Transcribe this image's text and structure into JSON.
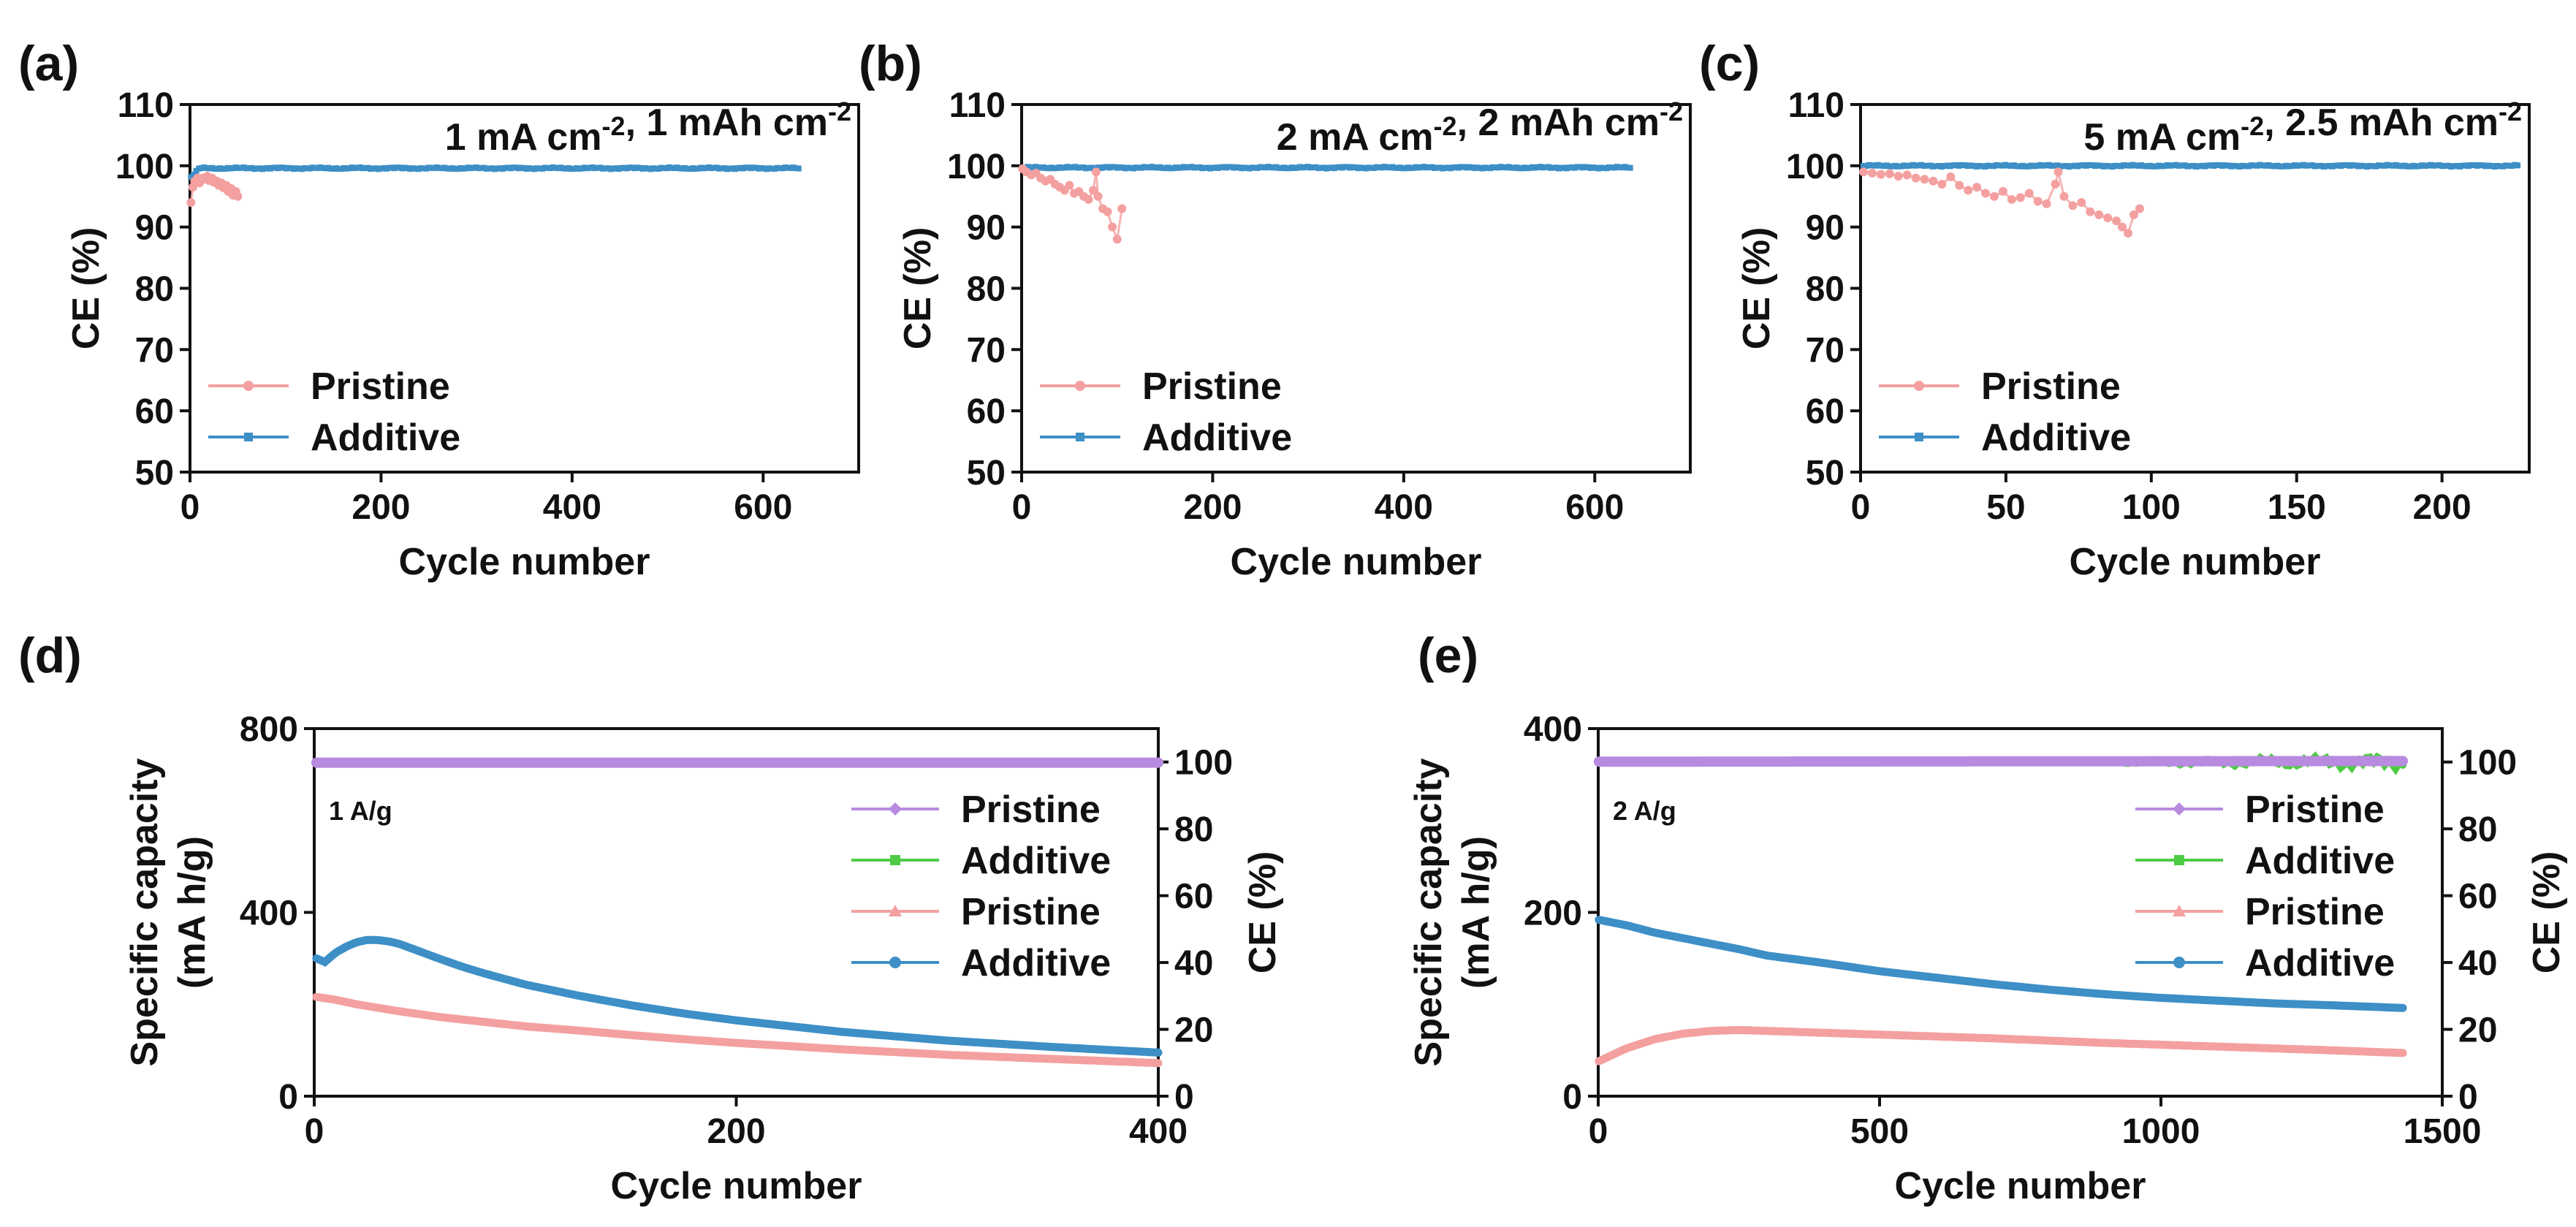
{
  "colors": {
    "pristine_ce": "#f4a0a0",
    "additive_ce": "#3d8fc6",
    "pristine_cap": "#f4a0a0",
    "additive_cap": "#3d8fc6",
    "pristine_ce_de": "#b88ae0",
    "additive_ce_de": "#4ecb45"
  },
  "chart_data": [
    {
      "panel": "(a)",
      "type": "scatter",
      "annotation": "1 mA cm-2, 1 mAh cm-2",
      "xlabel": "Cycle number",
      "ylabel": "CE (%)",
      "xlim": [
        0,
        700
      ],
      "ylim": [
        50,
        110
      ],
      "xticks": [
        0,
        200,
        400,
        600
      ],
      "yticks": [
        50,
        60,
        70,
        80,
        90,
        100,
        110
      ],
      "legend_position": "bottom-left",
      "series": [
        {
          "name": "Pristine",
          "color": "#f4a0a0",
          "x": [
            1,
            3,
            5,
            8,
            10,
            13,
            15,
            18,
            20,
            23,
            25,
            28,
            30,
            33,
            35,
            38,
            40,
            43,
            45,
            48,
            50
          ],
          "y": [
            94,
            96.5,
            97.5,
            98,
            97.2,
            98,
            97.8,
            98.3,
            97.6,
            98,
            97.3,
            97.5,
            96.8,
            97.2,
            96.4,
            96.8,
            95.8,
            96.3,
            95.2,
            95.8,
            95
          ]
        },
        {
          "name": "Additive",
          "color": "#3d8fc6",
          "x_range": [
            1,
            637
          ],
          "y_start": 98,
          "y_plateau": 99.6
        }
      ]
    },
    {
      "panel": "(b)",
      "type": "scatter",
      "annotation": "2 mA cm-2, 2 mAh cm-2",
      "xlabel": "Cycle number",
      "ylabel": "CE (%)",
      "xlim": [
        0,
        700
      ],
      "ylim": [
        50,
        110
      ],
      "xticks": [
        0,
        200,
        400,
        600
      ],
      "yticks": [
        50,
        60,
        70,
        80,
        90,
        100,
        110
      ],
      "legend_position": "bottom-left",
      "series": [
        {
          "name": "Pristine",
          "color": "#f4a0a0",
          "x": [
            1,
            5,
            10,
            15,
            20,
            25,
            30,
            35,
            40,
            45,
            50,
            55,
            60,
            65,
            70,
            75,
            78,
            80,
            85,
            90,
            95,
            100,
            105
          ],
          "y": [
            99.5,
            99,
            98.5,
            98.8,
            98,
            97.5,
            97.8,
            97,
            96.5,
            96,
            96.8,
            95.5,
            95.8,
            95,
            94.5,
            96,
            99,
            95,
            93,
            92.5,
            90,
            88,
            93
          ]
        },
        {
          "name": "Additive",
          "color": "#3d8fc6",
          "x_range": [
            1,
            637
          ],
          "y_start": 99.7,
          "y_plateau": 99.7
        }
      ]
    },
    {
      "panel": "(c)",
      "type": "scatter",
      "annotation": "5 mA cm-2, 2.5 mAh cm-2",
      "xlabel": "Cycle number",
      "ylabel": "CE (%)",
      "xlim": [
        0,
        230
      ],
      "ylim": [
        50,
        110
      ],
      "xticks": [
        0,
        50,
        100,
        150,
        200
      ],
      "yticks": [
        50,
        60,
        70,
        80,
        90,
        100,
        110
      ],
      "legend_position": "bottom-left",
      "series": [
        {
          "name": "Pristine",
          "color": "#f4a0a0",
          "x": [
            1,
            4,
            7,
            10,
            13,
            16,
            19,
            22,
            25,
            28,
            31,
            34,
            37,
            40,
            43,
            46,
            49,
            52,
            55,
            58,
            61,
            64,
            67,
            68,
            70,
            73,
            76,
            79,
            82,
            85,
            88,
            90,
            92,
            94,
            96
          ],
          "y": [
            99,
            98.8,
            98.6,
            98.7,
            98.3,
            98.5,
            98,
            97.8,
            97.5,
            97,
            98.2,
            96.8,
            96,
            96.5,
            95.5,
            95,
            95.8,
            94.5,
            94.8,
            95.5,
            94.2,
            93.8,
            97,
            99,
            95,
            93.5,
            94,
            92.5,
            92,
            91.5,
            91,
            90,
            89,
            92,
            93
          ]
        },
        {
          "name": "Additive",
          "color": "#3d8fc6",
          "x_range": [
            1,
            226
          ],
          "y_start": 100,
          "y_plateau": 100
        }
      ]
    },
    {
      "panel": "(d)",
      "type": "line",
      "rate_label": "1 A/g",
      "xlabel": "Cycle number",
      "ylabel": "Specific capacity",
      "ylabel_unit": "(mA h/g)",
      "y2label": "CE (%)",
      "xlim": [
        0,
        400
      ],
      "ylim": [
        0,
        800
      ],
      "y2lim": [
        0,
        110
      ],
      "xticks": [
        0,
        200,
        400
      ],
      "yticks": [
        0,
        400,
        800
      ],
      "y2ticks": [
        0,
        20,
        40,
        60,
        80,
        100
      ],
      "legend_position": "right",
      "series": [
        {
          "name": "Pristine",
          "axis": "right",
          "color": "#b88ae0",
          "x": [
            1,
            400
          ],
          "y": [
            99.8,
            99.8
          ]
        },
        {
          "name": "Additive",
          "axis": "right",
          "color": "#4ecb45",
          "x": [
            1,
            400
          ],
          "y": [
            99.9,
            99.9
          ]
        },
        {
          "name": "Pristine",
          "axis": "left",
          "color": "#f4a0a0",
          "x": [
            1,
            10,
            20,
            40,
            60,
            80,
            100,
            125,
            150,
            175,
            200,
            250,
            300,
            350,
            400
          ],
          "y": [
            216,
            210,
            200,
            185,
            172,
            162,
            152,
            143,
            133,
            124,
            116,
            102,
            90,
            81,
            72
          ]
        },
        {
          "name": "Additive",
          "axis": "left",
          "color": "#3d8fc6",
          "x": [
            1,
            5,
            10,
            15,
            20,
            25,
            30,
            35,
            40,
            50,
            60,
            70,
            80,
            100,
            125,
            150,
            175,
            200,
            250,
            300,
            350,
            400
          ],
          "y": [
            300,
            292,
            312,
            325,
            335,
            340,
            340,
            337,
            332,
            315,
            298,
            282,
            268,
            243,
            219,
            198,
            180,
            165,
            140,
            121,
            107,
            95
          ]
        }
      ]
    },
    {
      "panel": "(e)",
      "type": "line",
      "rate_label": "2 A/g",
      "xlabel": "Cycle number",
      "ylabel": "Specific capacity",
      "ylabel_unit": "(mA h/g)",
      "y2label": "CE (%)",
      "xlim": [
        0,
        1500
      ],
      "ylim": [
        0,
        400
      ],
      "y2lim": [
        0,
        110
      ],
      "xticks": [
        0,
        500,
        1000,
        1500
      ],
      "yticks": [
        0,
        200,
        400
      ],
      "y2ticks": [
        0,
        20,
        40,
        60,
        80,
        100
      ],
      "legend_position": "right",
      "series": [
        {
          "name": "Pristine",
          "axis": "right",
          "color": "#b88ae0",
          "x": [
            1,
            1430
          ],
          "y": [
            100.1,
            100.3
          ]
        },
        {
          "name": "Additive",
          "axis": "right",
          "color": "#4ecb45",
          "x": [
            1,
            1430
          ],
          "y": [
            100,
            100
          ]
        },
        {
          "name": "Pristine",
          "axis": "left",
          "color": "#f4a0a0",
          "x": [
            1,
            50,
            100,
            150,
            200,
            250,
            300,
            400,
            500,
            700,
            900,
            1100,
            1300,
            1430
          ],
          "y": [
            38,
            52,
            62,
            68,
            71,
            72,
            71,
            69,
            67,
            63,
            58,
            54,
            50,
            47
          ]
        },
        {
          "name": "Additive",
          "axis": "left",
          "color": "#3d8fc6",
          "x": [
            1,
            50,
            100,
            150,
            200,
            250,
            300,
            400,
            500,
            600,
            700,
            800,
            900,
            1000,
            1100,
            1200,
            1300,
            1430
          ],
          "y": [
            192,
            186,
            178,
            172,
            166,
            160,
            153,
            145,
            136,
            129,
            122,
            116,
            111,
            107,
            104,
            101,
            99,
            96
          ]
        }
      ]
    }
  ]
}
